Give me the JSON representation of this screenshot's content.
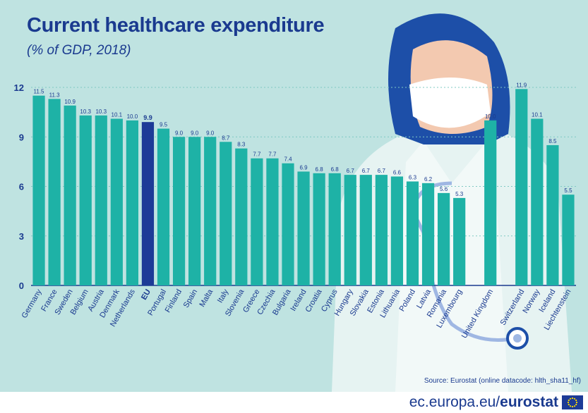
{
  "title": "Current healthcare expenditure",
  "subtitle": "(% of GDP, 2018)",
  "source": "Source: Eurostat (online datacode: hlth_sha11_hf)",
  "footer": {
    "site_prefix": "ec.europa.eu/",
    "site_brand": "eurostat"
  },
  "colors": {
    "bar": "#1eb2a6",
    "eu_bar": "#1d3b97",
    "background": "#bfe3e1",
    "text": "#1a3a8f",
    "grid": "#7fc9c3"
  },
  "chart_data": {
    "type": "bar",
    "title": "Current healthcare expenditure",
    "subtitle": "(% of GDP, 2018)",
    "categories": [
      "Germany",
      "France",
      "Sweden",
      "Belgium",
      "Austria",
      "Denmark",
      "Netherlands",
      "EU",
      "Portugal",
      "Finland",
      "Spain",
      "Malta",
      "Italy",
      "Slovenia",
      "Greece",
      "Czechia",
      "Bulgaria",
      "Ireland",
      "Croatia",
      "Cyprus",
      "Hungary",
      "Slovakia",
      "Estonia",
      "Lithuania",
      "Poland",
      "Latvia",
      "Romania",
      "Luxembourg",
      "United Kingdom",
      "Switzerland",
      "Norway",
      "Iceland",
      "Liechtenstein"
    ],
    "values": [
      11.5,
      11.3,
      10.9,
      10.3,
      10.3,
      10.1,
      10.0,
      9.9,
      9.5,
      9.0,
      9.0,
      9.0,
      8.7,
      8.3,
      7.7,
      7.7,
      7.4,
      6.9,
      6.8,
      6.8,
      6.7,
      6.7,
      6.7,
      6.6,
      6.3,
      6.2,
      5.6,
      5.3,
      10.0,
      11.9,
      10.1,
      8.5,
      5.5
    ],
    "value_labels": [
      "11.5",
      "11.3",
      "10.9",
      "10.3",
      "10.3",
      "10.1",
      "10.0",
      "9.9",
      "9.5",
      "9.0",
      "9.0",
      "9.0",
      "8.7",
      "8.3",
      "7.7",
      "7.7",
      "7.4",
      "6.9",
      "6.8",
      "6.8",
      "6.7",
      "6.7",
      "6.7",
      "6.6",
      "6.3",
      "6.2",
      "5.6",
      "5.3",
      "10.0",
      "11.9",
      "10.1",
      "8.5",
      "5.5"
    ],
    "highlight": "EU",
    "group_gap_after": [
      "Luxembourg",
      "United Kingdom"
    ],
    "yticks": [
      "0",
      "3",
      "6",
      "9",
      "12"
    ],
    "ylim": [
      0,
      12
    ],
    "xlabel": "",
    "ylabel": "",
    "grid": true
  }
}
